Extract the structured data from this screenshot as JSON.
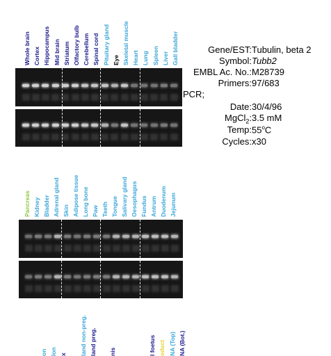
{
  "panel1": {
    "lanes": [
      {
        "label": "Whole brain",
        "color": "#1a1a8c"
      },
      {
        "label": "Cortex",
        "color": "#1a1a8c"
      },
      {
        "label": "Hippocampus",
        "color": "#1a1a8c"
      },
      {
        "label": "Mid brain",
        "color": "#1a1a8c"
      },
      {
        "label": "Striatum",
        "color": "#1a1a8c"
      },
      {
        "label": "Olfactory bulb",
        "color": "#1a1a8c"
      },
      {
        "label": "Cerebellum",
        "color": "#1a1a8c"
      },
      {
        "label": "Spinal cord",
        "color": "#1a1a8c"
      },
      {
        "label": "Pituitary gland",
        "color": "#3aa6d8"
      },
      {
        "label": "Eye",
        "color": "#000000"
      },
      {
        "label": "Skeletal muscle",
        "color": "#3aa6d8"
      },
      {
        "label": "Heart",
        "color": "#3aa6d8"
      },
      {
        "label": "Lung",
        "color": "#3aa6d8"
      },
      {
        "label": "Spleen",
        "color": "#3aa6d8"
      },
      {
        "label": "Liver",
        "color": "#3aa6d8"
      },
      {
        "label": "Gall bladder",
        "color": "#3aa6d8"
      }
    ],
    "gel_top_intensity": [
      1,
      1,
      1,
      1,
      1,
      1,
      0.9,
      0.9,
      0.9,
      0.7,
      0.9,
      0.5,
      0.5,
      0.5,
      0.6,
      0.5
    ],
    "gel_bottom_intensity": [
      1,
      1,
      1,
      1,
      1,
      1,
      0.9,
      0.9,
      0.7,
      0.6,
      0.9,
      0.5,
      0.5,
      0.5,
      0.6,
      0.5
    ]
  },
  "panel2": {
    "lanes": [
      {
        "label": "Pancreas",
        "color": "#8cc63f"
      },
      {
        "label": "Kidney",
        "color": "#3aa6d8"
      },
      {
        "label": "Bladder",
        "color": "#3aa6d8"
      },
      {
        "label": "Adrenal gland",
        "color": "#3aa6d8"
      },
      {
        "label": "Skin",
        "color": "#3aa6d8"
      },
      {
        "label": "Adipose tissue",
        "color": "#3aa6d8"
      },
      {
        "label": "Long bone",
        "color": "#3aa6d8"
      },
      {
        "label": "Paw",
        "color": "#3aa6d8"
      },
      {
        "label": "Teeth",
        "color": "#3aa6d8"
      },
      {
        "label": "Tongue",
        "color": "#3aa6d8"
      },
      {
        "label": "Salivary gland",
        "color": "#3aa6d8"
      },
      {
        "label": "Oesophagus",
        "color": "#3aa6d8"
      },
      {
        "label": "Fundus",
        "color": "#3aa6d8"
      },
      {
        "label": "Antrum",
        "color": "#3aa6d8"
      },
      {
        "label": "Duodenum",
        "color": "#3aa6d8"
      },
      {
        "label": "Jejunum",
        "color": "#3aa6d8"
      }
    ],
    "gel_top_intensity": [
      0.4,
      0.6,
      0.6,
      0.7,
      0.6,
      0.5,
      0.6,
      0.6,
      0.6,
      0.7,
      0.7,
      0.7,
      0.8,
      0.8,
      0.8,
      0.7
    ],
    "gel_bottom_intensity": [
      0.4,
      0.6,
      0.6,
      0.7,
      0.6,
      0.5,
      0.6,
      0.6,
      0.6,
      0.7,
      0.7,
      0.7,
      0.8,
      0.8,
      0.8,
      0.7
    ]
  },
  "panel3": {
    "lanes": [
      {
        "label": "on",
        "color": "#3aa6d8"
      },
      {
        "label": "lon",
        "color": "#3aa6d8"
      },
      {
        "label": "x",
        "color": "#1a1a8c"
      },
      {
        "label": "",
        "color": "#3aa6d8"
      },
      {
        "label": "land non-preg.",
        "color": "#3aa6d8"
      },
      {
        "label": "land preg.",
        "color": "#1a1a8c"
      },
      {
        "label": "",
        "color": "#3aa6d8"
      },
      {
        "label": "nis",
        "color": "#1a1a8c"
      },
      {
        "label": "",
        "color": "#3aa6d8"
      },
      {
        "label": "",
        "color": "#3aa6d8"
      },
      {
        "label": "",
        "color": "#3aa6d8"
      },
      {
        "label": "l foetus",
        "color": "#1a1a8c"
      },
      {
        "label": "oduct",
        "color": "#e8d23a"
      },
      {
        "label": "NA (Top)",
        "color": "#3aa6d8"
      },
      {
        "label": "NA (Bot.)",
        "color": "#1a1a8c"
      }
    ]
  },
  "info": {
    "gene_label": "Gene/EST:",
    "gene_value": "Tubulin, beta 2",
    "symbol_label": "Symbol:",
    "symbol_value": "Tubb2",
    "embl_label": "EMBL Ac. No.:",
    "embl_value": "M28739",
    "primers_label": "Primers:",
    "primers_value": "97/683",
    "pcr_label": "PCR;",
    "date_label": "Date:",
    "date_value": "30/4/96",
    "mgcl_label": "MgCl",
    "mgcl_sub": "2",
    "mgcl_colon": ":",
    "mgcl_value": "3.5 mM",
    "temp_label": "Temp:",
    "temp_value": "55",
    "temp_sup": "o",
    "temp_unit": "C",
    "cycles_label": "Cycles:",
    "cycles_value": "x30"
  }
}
